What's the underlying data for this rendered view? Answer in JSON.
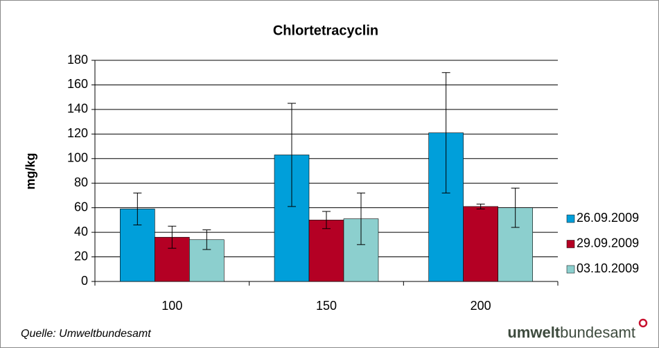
{
  "chart_data": {
    "type": "bar",
    "title": "Chlortetracyclin",
    "y_label": "mg/kg",
    "categories": [
      "100",
      "150",
      "200"
    ],
    "series": [
      {
        "name": "26.09.2009",
        "color": "#009fda",
        "values": [
          59,
          103,
          121
        ],
        "errors": [
          13,
          42,
          49
        ]
      },
      {
        "name": "29.09.2009",
        "color": "#b40024",
        "values": [
          36,
          50,
          61
        ],
        "errors": [
          9,
          7,
          2
        ]
      },
      {
        "name": "03.10.2009",
        "color": "#8ccfce",
        "values": [
          34,
          51,
          60
        ],
        "errors": [
          8,
          21,
          16
        ]
      }
    ],
    "ylim": [
      0,
      180
    ],
    "yticks": [
      0,
      20,
      40,
      60,
      80,
      100,
      120,
      140,
      160,
      180
    ],
    "grid": true,
    "legend": "right",
    "source": "Quelle: Umweltbundesamt",
    "logo": {
      "bold": "umwelt",
      "regular": "bundesamt"
    }
  }
}
